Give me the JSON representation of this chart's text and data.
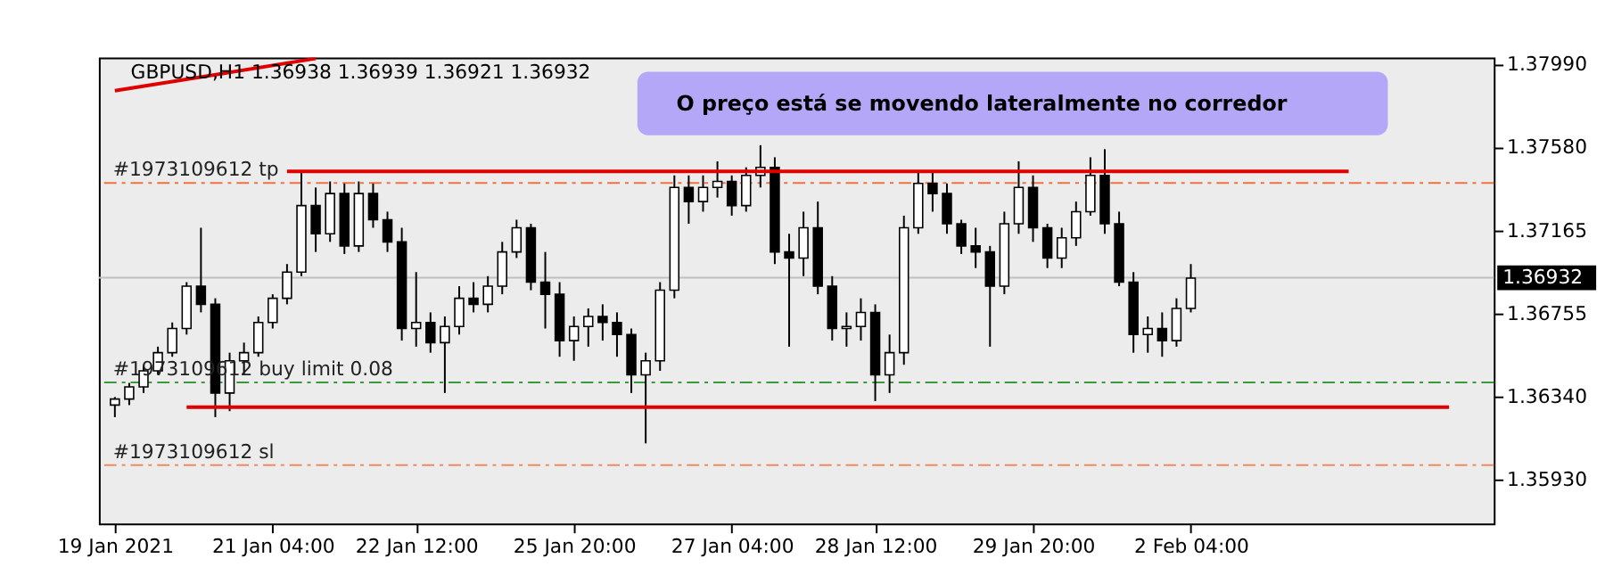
{
  "chart_data": {
    "type": "candlestick",
    "title": "GBPUSD,H1  1.36938 1.36939 1.36921 1.36932",
    "annotations": [
      "O preço está se movendo lateralmente no corredor"
    ],
    "categories": [
      "19 Jan 2021",
      null,
      null,
      null,
      null,
      null,
      null,
      null,
      null,
      null,
      null,
      "21 Jan 04:00",
      null,
      null,
      null,
      null,
      null,
      null,
      null,
      null,
      null,
      "22 Jan 12:00",
      null,
      null,
      null,
      null,
      null,
      null,
      null,
      null,
      null,
      null,
      "25 Jan 20:00",
      null,
      null,
      null,
      null,
      null,
      null,
      null,
      null,
      null,
      null,
      "27 Jan 04:00",
      null,
      null,
      null,
      null,
      null,
      null,
      null,
      null,
      null,
      "28 Jan 12:00",
      null,
      null,
      null,
      null,
      null,
      null,
      null,
      null,
      null,
      null,
      "29 Jan 20:00",
      null,
      null,
      null,
      null,
      null,
      null,
      null,
      null,
      null,
      null,
      "2 Feb 04:00",
      null,
      null,
      null,
      null,
      null,
      null,
      null,
      null,
      null,
      null,
      null,
      null,
      null,
      null,
      null,
      null,
      null,
      null,
      null,
      null
    ],
    "ohlc": [
      [
        1.363,
        1.3634,
        1.3624,
        1.3633
      ],
      [
        1.3633,
        1.3641,
        1.363,
        1.3639
      ],
      [
        1.3639,
        1.365,
        1.3636,
        1.3647
      ],
      [
        1.3647,
        1.3659,
        1.3645,
        1.3656
      ],
      [
        1.3656,
        1.3671,
        1.3654,
        1.3668
      ],
      [
        1.3668,
        1.3691,
        1.3665,
        1.3689
      ],
      [
        1.3689,
        1.3718,
        1.3676,
        1.368
      ],
      [
        1.368,
        1.3683,
        1.3624,
        1.3636
      ],
      [
        1.3636,
        1.3656,
        1.3627,
        1.3652
      ],
      [
        1.3652,
        1.3661,
        1.3645,
        1.3656
      ],
      [
        1.3656,
        1.3674,
        1.3654,
        1.3671
      ],
      [
        1.3671,
        1.3685,
        1.3668,
        1.3683
      ],
      [
        1.3683,
        1.37,
        1.368,
        1.3696
      ],
      [
        1.3696,
        1.3746,
        1.3694,
        1.3729
      ],
      [
        1.3729,
        1.3738,
        1.3706,
        1.3715
      ],
      [
        1.3715,
        1.3741,
        1.3711,
        1.3735
      ],
      [
        1.3735,
        1.374,
        1.3705,
        1.3709
      ],
      [
        1.3709,
        1.3741,
        1.3706,
        1.3735
      ],
      [
        1.3735,
        1.374,
        1.3718,
        1.3722
      ],
      [
        1.3722,
        1.3726,
        1.3706,
        1.3711
      ],
      [
        1.3711,
        1.3718,
        1.3662,
        1.3668
      ],
      [
        1.3668,
        1.3696,
        1.3659,
        1.3671
      ],
      [
        1.3671,
        1.3676,
        1.3656,
        1.3661
      ],
      [
        1.3661,
        1.3674,
        1.3636,
        1.3669
      ],
      [
        1.3669,
        1.3689,
        1.3665,
        1.3683
      ],
      [
        1.3683,
        1.3691,
        1.3676,
        1.368
      ],
      [
        1.368,
        1.3694,
        1.3676,
        1.3689
      ],
      [
        1.3689,
        1.3711,
        1.3685,
        1.3706
      ],
      [
        1.3706,
        1.3722,
        1.3703,
        1.3718
      ],
      [
        1.3718,
        1.372,
        1.3687,
        1.3691
      ],
      [
        1.3691,
        1.3706,
        1.3668,
        1.3685
      ],
      [
        1.3685,
        1.3691,
        1.3654,
        1.3662
      ],
      [
        1.3662,
        1.3674,
        1.3652,
        1.3669
      ],
      [
        1.3669,
        1.3678,
        1.3659,
        1.3674
      ],
      [
        1.3674,
        1.368,
        1.3662,
        1.3671
      ],
      [
        1.3671,
        1.3676,
        1.3654,
        1.3665
      ],
      [
        1.3665,
        1.3668,
        1.3636,
        1.3645
      ],
      [
        1.3645,
        1.3656,
        1.3611,
        1.3652
      ],
      [
        1.3652,
        1.3691,
        1.3647,
        1.3687
      ],
      [
        1.3687,
        1.3744,
        1.3683,
        1.3738
      ],
      [
        1.3738,
        1.3744,
        1.372,
        1.3731
      ],
      [
        1.3731,
        1.3744,
        1.3726,
        1.3738
      ],
      [
        1.3738,
        1.3751,
        1.3733,
        1.3741
      ],
      [
        1.3741,
        1.3744,
        1.3724,
        1.3729
      ],
      [
        1.3729,
        1.3748,
        1.3726,
        1.3744
      ],
      [
        1.3744,
        1.3759,
        1.3738,
        1.3748
      ],
      [
        1.3748,
        1.3753,
        1.37,
        1.3706
      ],
      [
        1.3706,
        1.3715,
        1.3659,
        1.3703
      ],
      [
        1.3703,
        1.3726,
        1.3694,
        1.3718
      ],
      [
        1.3718,
        1.3731,
        1.3685,
        1.3689
      ],
      [
        1.3689,
        1.3694,
        1.3662,
        1.3668
      ],
      [
        1.3668,
        1.3676,
        1.3659,
        1.3669
      ],
      [
        1.3669,
        1.3683,
        1.3662,
        1.3676
      ],
      [
        1.3676,
        1.368,
        1.3632,
        1.3645
      ],
      [
        1.3645,
        1.3665,
        1.3636,
        1.3656
      ],
      [
        1.3656,
        1.3724,
        1.365,
        1.3718
      ],
      [
        1.3718,
        1.3746,
        1.3715,
        1.374
      ],
      [
        1.374,
        1.3746,
        1.3726,
        1.3735
      ],
      [
        1.3735,
        1.374,
        1.3715,
        1.372
      ],
      [
        1.372,
        1.3722,
        1.3705,
        1.3709
      ],
      [
        1.3709,
        1.3718,
        1.3698,
        1.3706
      ],
      [
        1.3706,
        1.3709,
        1.3659,
        1.3689
      ],
      [
        1.3689,
        1.3726,
        1.3685,
        1.372
      ],
      [
        1.372,
        1.3751,
        1.3715,
        1.3738
      ],
      [
        1.3738,
        1.3744,
        1.3711,
        1.3718
      ],
      [
        1.3718,
        1.372,
        1.3698,
        1.3703
      ],
      [
        1.3703,
        1.3718,
        1.3698,
        1.3713
      ],
      [
        1.3713,
        1.3731,
        1.3709,
        1.3726
      ],
      [
        1.3726,
        1.3753,
        1.3724,
        1.3744
      ],
      [
        1.3744,
        1.3757,
        1.3715,
        1.372
      ],
      [
        1.372,
        1.3726,
        1.3689,
        1.3691
      ],
      [
        1.3691,
        1.3696,
        1.3656,
        1.3665
      ],
      [
        1.3665,
        1.3674,
        1.3656,
        1.3668
      ],
      [
        1.3668,
        1.3676,
        1.3654,
        1.3662
      ],
      [
        1.3662,
        1.3683,
        1.3659,
        1.3678
      ],
      [
        1.3678,
        1.37,
        1.3676,
        1.3693
      ],
      null,
      null,
      null,
      null,
      null,
      null,
      null,
      null,
      null,
      null,
      null,
      null,
      null,
      null,
      null,
      null,
      null,
      null,
      null,
      null
    ],
    "series": [
      {
        "type": "line",
        "color": "#e00000",
        "values": [
          null,
          null,
          null,
          null,
          null,
          null,
          null,
          null,
          null,
          null,
          null,
          null,
          1.3746,
          null,
          null,
          null,
          null,
          null,
          null,
          null,
          null,
          null,
          null,
          null,
          null,
          null,
          null,
          null,
          null,
          null,
          null,
          null,
          null,
          null,
          null,
          null,
          null,
          null,
          null,
          null,
          null,
          null,
          null,
          null,
          null,
          null,
          null,
          null,
          null,
          null,
          null,
          null,
          null,
          null,
          null,
          null,
          null,
          null,
          null,
          null,
          null,
          null,
          null,
          null,
          null,
          null,
          null,
          null,
          null,
          null,
          null,
          null,
          null,
          null,
          null,
          null,
          null,
          null,
          null,
          null,
          null,
          null,
          null,
          null,
          null,
          null,
          1.3746,
          null,
          null,
          null,
          null,
          null,
          null,
          null,
          null,
          null
        ]
      },
      {
        "type": "line",
        "color": "#e00000",
        "values": [
          null,
          null,
          null,
          null,
          null,
          1.3629,
          null,
          null,
          null,
          null,
          null,
          null,
          null,
          null,
          null,
          null,
          null,
          null,
          null,
          null,
          null,
          null,
          null,
          null,
          null,
          null,
          null,
          null,
          null,
          null,
          null,
          null,
          null,
          null,
          null,
          null,
          null,
          null,
          null,
          null,
          null,
          null,
          null,
          null,
          null,
          null,
          null,
          null,
          null,
          null,
          null,
          null,
          null,
          null,
          null,
          null,
          null,
          null,
          null,
          null,
          null,
          null,
          null,
          null,
          null,
          null,
          null,
          null,
          null,
          null,
          null,
          null,
          null,
          null,
          null,
          null,
          null,
          null,
          null,
          null,
          null,
          null,
          null,
          null,
          null,
          null,
          null,
          null,
          null,
          null,
          null,
          null,
          null,
          1.3629,
          null,
          null
        ]
      },
      {
        "type": "line",
        "color": "#e00000",
        "values": [
          1.3786,
          null,
          null,
          null,
          null,
          null,
          null,
          null,
          null,
          null,
          null,
          null,
          null,
          null,
          1.3802,
          null,
          null,
          null,
          null,
          null,
          null,
          null,
          null,
          null,
          null,
          null,
          null,
          null,
          null,
          null,
          null,
          null,
          null,
          null,
          null,
          null,
          null,
          null,
          null,
          null,
          null,
          null,
          null,
          null,
          null,
          null,
          null,
          null,
          null,
          null,
          null,
          null,
          null,
          null,
          null,
          null,
          null,
          null,
          null,
          null,
          null,
          null,
          null,
          null,
          null,
          null,
          null,
          null,
          null,
          null,
          null,
          null,
          null,
          null,
          null,
          null,
          null,
          null,
          null,
          null,
          null,
          null,
          null,
          null,
          null,
          null,
          null,
          null,
          null,
          null,
          null,
          null,
          null,
          null,
          null,
          null
        ]
      }
    ],
    "ref_lines": [
      {
        "axis": "y",
        "value": 1.37402,
        "label": "#1973109612 tp",
        "color": "#f07040",
        "line_style": "dashed"
      },
      {
        "axis": "y",
        "value": 1.36412,
        "label": "#1973109612 buy limit 0.08",
        "color": "#3a9a3a",
        "line_style": "dashed"
      },
      {
        "axis": "y",
        "value": 1.36002,
        "label": "#1973109612 sl",
        "color": "#f08a60",
        "line_style": "dashed"
      },
      {
        "axis": "y",
        "value": 1.36932,
        "label": "1.36932",
        "color": "#c0c0c0",
        "line_style": "solid"
      }
    ],
    "ylim": [
      1.35712,
      1.38025
    ],
    "yticks": [
      {
        "value": 1.3799,
        "label": "1.37990"
      },
      {
        "value": 1.3758,
        "label": "1.37580"
      },
      {
        "value": 1.37165,
        "label": "1.37165"
      },
      {
        "value": 1.36755,
        "label": "1.36755"
      },
      {
        "value": 1.3634,
        "label": "1.36340"
      },
      {
        "value": 1.3593,
        "label": "1.35930"
      }
    ],
    "grid": false
  }
}
